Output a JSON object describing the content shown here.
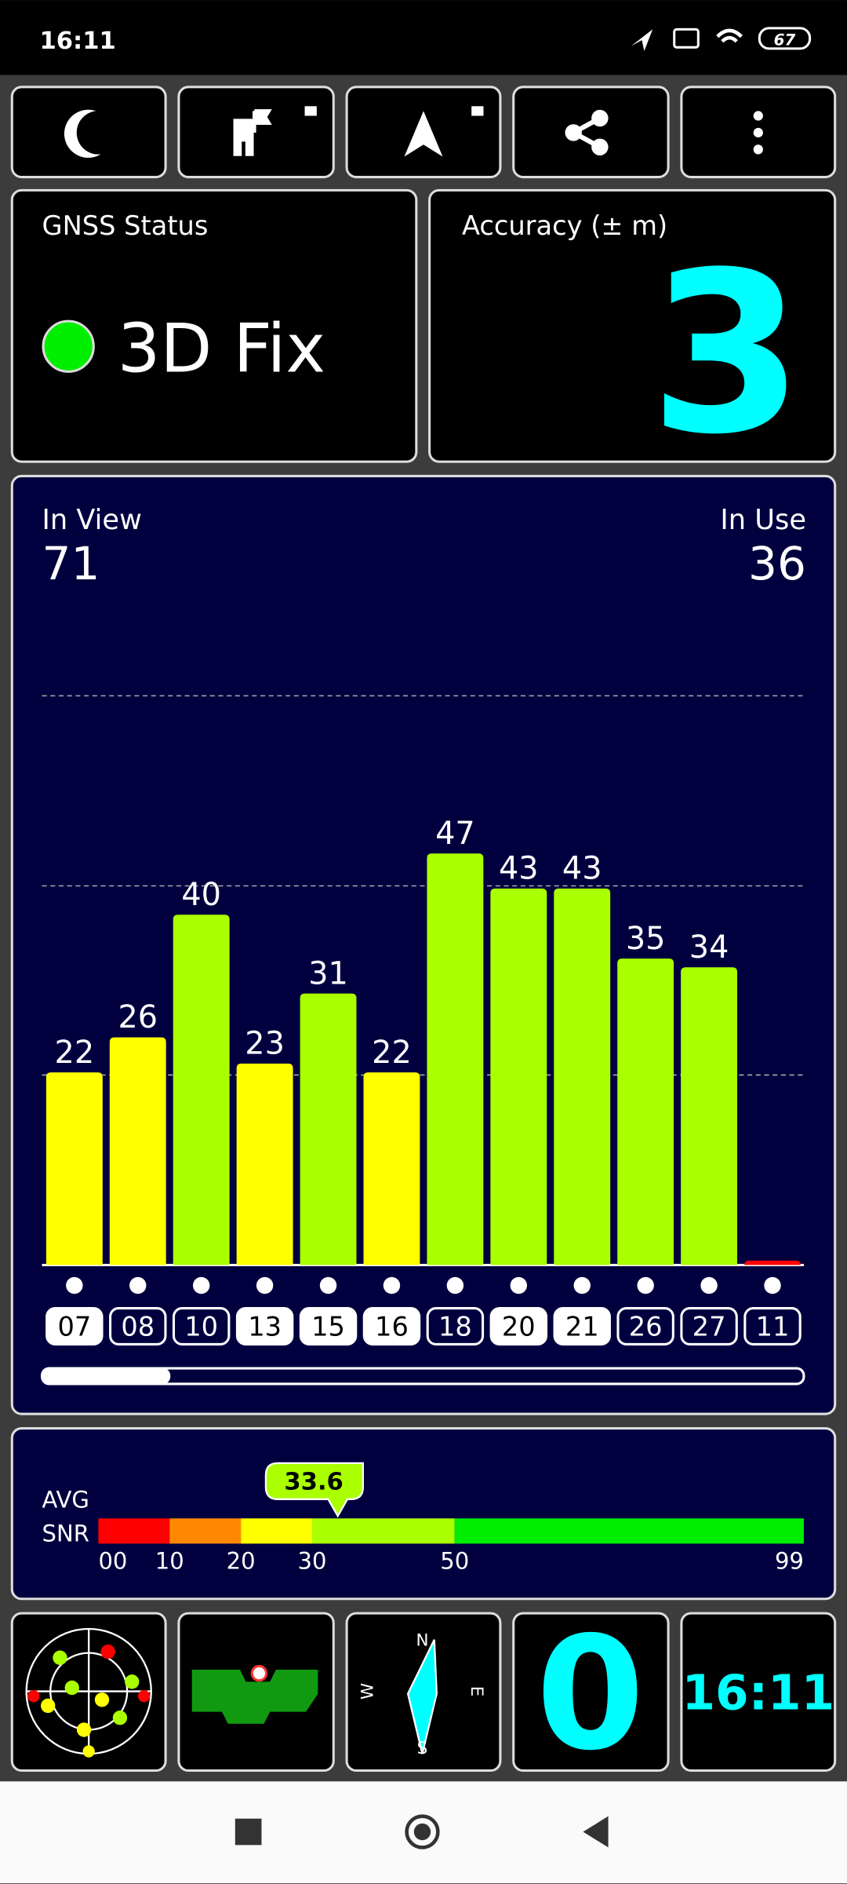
{
  "status_bar": {
    "time": "16:11",
    "battery": "67"
  },
  "gnss_status": {
    "title": "GNSS Status",
    "value": "3D Fix"
  },
  "accuracy": {
    "title": "Accuracy (± m)",
    "value": "3"
  },
  "satellites": {
    "in_view_label": "In View",
    "in_view": "71",
    "in_use_label": "In Use",
    "in_use": "36"
  },
  "chart_data": {
    "type": "bar",
    "categories": [
      "07",
      "08",
      "10",
      "13",
      "15",
      "16",
      "18",
      "20",
      "21",
      "26",
      "27",
      "11"
    ],
    "values": [
      22,
      26,
      40,
      23,
      31,
      22,
      47,
      43,
      43,
      35,
      34,
      0.5
    ],
    "value_labels": [
      "22",
      "26",
      "40",
      "23",
      "31",
      "22",
      "47",
      "43",
      "43",
      "35",
      "34",
      null
    ],
    "colors": [
      "#ffff00",
      "#ffff00",
      "#aaff00",
      "#ffff00",
      "#aaff00",
      "#ffff00",
      "#aaff00",
      "#aaff00",
      "#aaff00",
      "#aaff00",
      "#aaff00",
      "#ff0000"
    ],
    "in_use": [
      true,
      false,
      false,
      true,
      true,
      true,
      false,
      true,
      true,
      false,
      false,
      false
    ],
    "ylim": [
      0,
      65
    ],
    "yticks": [
      21.7,
      43.3,
      65
    ],
    "grid": true
  },
  "snr": {
    "labels": [
      "AVG",
      "SNR"
    ],
    "xlim": [
      0,
      99
    ],
    "ticks": [
      {
        "value": 0,
        "label": "00"
      },
      10,
      20,
      30,
      50,
      99
    ],
    "band_colors": [
      "#ff0000",
      "#ff8800",
      "#ffff00",
      "#aaff00",
      "#00ee00"
    ],
    "average": 33.6
  },
  "tiles": {
    "counter": "0",
    "clock": "16:11",
    "compass": [
      "N",
      "E",
      "S",
      "W"
    ]
  }
}
